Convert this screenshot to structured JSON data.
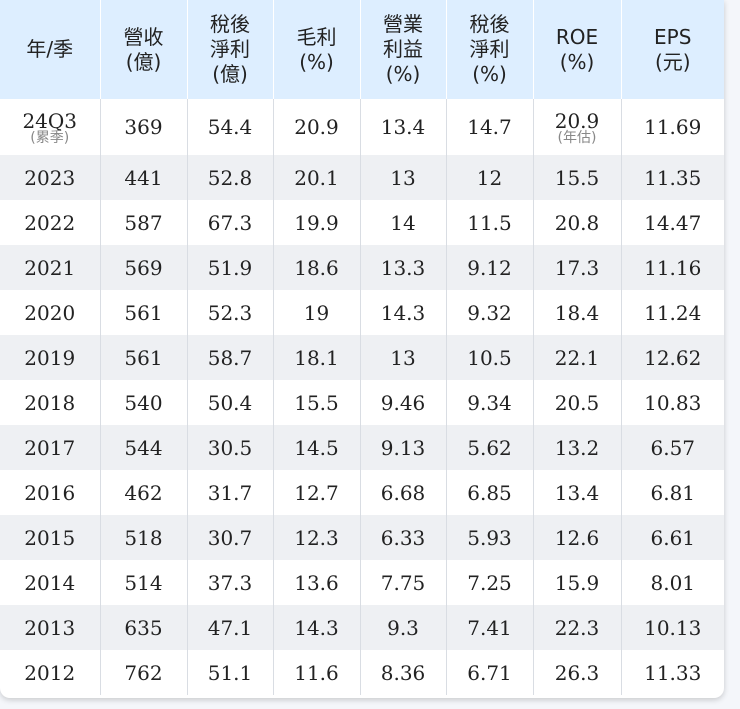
{
  "table": {
    "headers": [
      [
        "年/季"
      ],
      [
        "營收",
        "(億)"
      ],
      [
        "稅後",
        "淨利",
        "(億)"
      ],
      [
        "毛利",
        "(%)"
      ],
      [
        "營業",
        "利益",
        "(%)"
      ],
      [
        "稅後",
        "淨利",
        "(%)"
      ],
      [
        "ROE",
        "(%)"
      ],
      [
        "EPS",
        "(元)"
      ]
    ],
    "first_row": {
      "period": "24Q3",
      "period_note": "(累季)",
      "revenue": "369",
      "net_income": "54.4",
      "gross_margin": "20.9",
      "operating_margin": "13.4",
      "net_margin": "14.7",
      "roe": "20.9",
      "roe_note": "(年估)",
      "eps": "11.69"
    },
    "rows": [
      [
        "2023",
        "441",
        "52.8",
        "20.1",
        "13",
        "12",
        "15.5",
        "11.35"
      ],
      [
        "2022",
        "587",
        "67.3",
        "19.9",
        "14",
        "11.5",
        "20.8",
        "14.47"
      ],
      [
        "2021",
        "569",
        "51.9",
        "18.6",
        "13.3",
        "9.12",
        "17.3",
        "11.16"
      ],
      [
        "2020",
        "561",
        "52.3",
        "19",
        "14.3",
        "9.32",
        "18.4",
        "11.24"
      ],
      [
        "2019",
        "561",
        "58.7",
        "18.1",
        "13",
        "10.5",
        "22.1",
        "12.62"
      ],
      [
        "2018",
        "540",
        "50.4",
        "15.5",
        "9.46",
        "9.34",
        "20.5",
        "10.83"
      ],
      [
        "2017",
        "544",
        "30.5",
        "14.5",
        "9.13",
        "5.62",
        "13.2",
        "6.57"
      ],
      [
        "2016",
        "462",
        "31.7",
        "12.7",
        "6.68",
        "6.85",
        "13.4",
        "6.81"
      ],
      [
        "2015",
        "518",
        "30.7",
        "12.3",
        "6.33",
        "5.93",
        "12.6",
        "6.61"
      ],
      [
        "2014",
        "514",
        "37.3",
        "13.6",
        "7.75",
        "7.25",
        "15.9",
        "8.01"
      ],
      [
        "2013",
        "635",
        "47.1",
        "14.3",
        "9.3",
        "7.41",
        "22.3",
        "10.13"
      ],
      [
        "2012",
        "762",
        "51.1",
        "11.6",
        "8.36",
        "6.71",
        "26.3",
        "11.33"
      ]
    ]
  },
  "colors": {
    "header_bg": "#ddeeff",
    "alt_row_bg": "#eef0f3"
  }
}
